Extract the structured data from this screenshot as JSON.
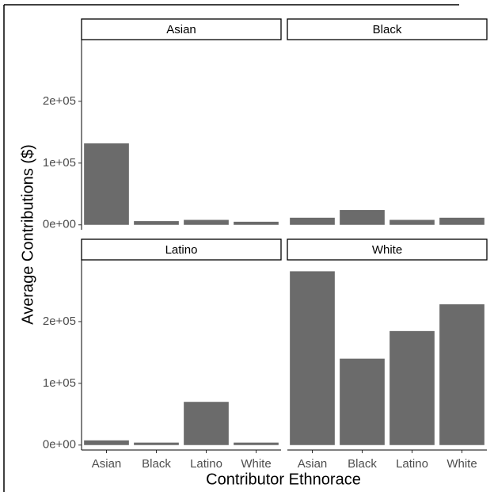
{
  "chart_data": {
    "type": "bar",
    "x_label": "Contributor Ethnorace",
    "y_label": "Average Contributions ($)",
    "categories": [
      "Asian",
      "Black",
      "Latino",
      "White"
    ],
    "color": "#6b6b6b",
    "ylim": [
      -8000,
      300000
    ],
    "yticks": [
      {
        "value": 0,
        "label": "0e+00"
      },
      {
        "value": 100000,
        "label": "1e+05"
      },
      {
        "value": 200000,
        "label": "2e+05"
      }
    ],
    "panels": [
      {
        "title": "Asian",
        "values": [
          132000,
          6000,
          8000,
          5000
        ]
      },
      {
        "title": "Black",
        "values": [
          11500,
          24000,
          8000,
          11500
        ]
      },
      {
        "title": "Latino",
        "values": [
          7600,
          4000,
          70000,
          4000
        ]
      },
      {
        "title": "White",
        "values": [
          281500,
          140000,
          184700,
          228000
        ]
      }
    ]
  }
}
